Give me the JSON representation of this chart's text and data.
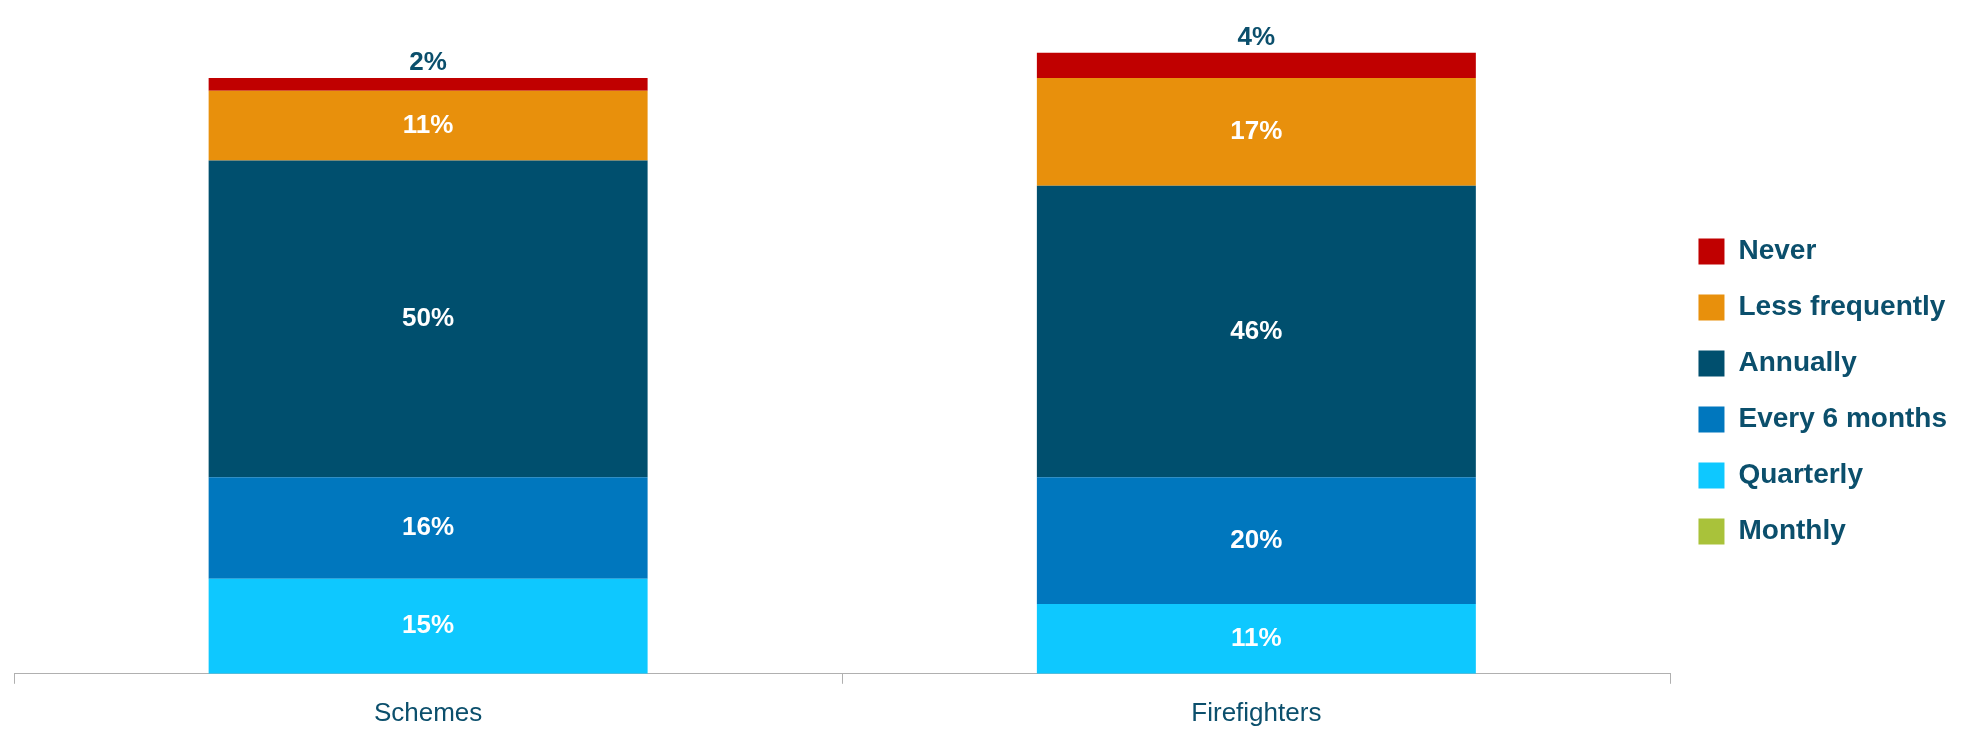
{
  "chart_data": {
    "type": "bar",
    "stacked": true,
    "legend": "right",
    "categories": [
      "Schemes",
      "Firefighters"
    ],
    "series": [
      {
        "name": "Monthly",
        "color": "#a9c23a",
        "values": [
          null,
          null
        ],
        "value_labels": [
          null,
          null
        ]
      },
      {
        "name": "Quarterly",
        "color": "#0ec8ff",
        "values": [
          15,
          11
        ],
        "value_labels": [
          "15%",
          "11%"
        ]
      },
      {
        "name": "Every 6 months",
        "color": "#0077be",
        "values": [
          16,
          20
        ],
        "value_labels": [
          "16%",
          "20%"
        ]
      },
      {
        "name": "Annually",
        "color": "#004f6e",
        "values": [
          50,
          46
        ],
        "value_labels": [
          "50%",
          "46%"
        ]
      },
      {
        "name": "Less frequently",
        "color": "#e8900c",
        "values": [
          11,
          17
        ],
        "value_labels": [
          "11%",
          "17%"
        ]
      },
      {
        "name": "Never",
        "color": "#c00000",
        "values": [
          2,
          4
        ],
        "value_labels": [
          "2%",
          "4%"
        ]
      }
    ]
  }
}
